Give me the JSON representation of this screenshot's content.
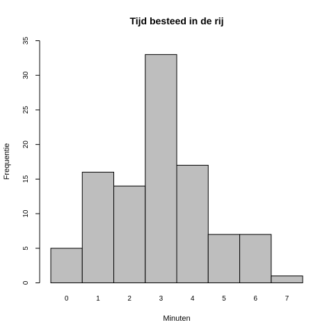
{
  "chart_data": {
    "type": "bar",
    "title": "Tijd besteed in de rij",
    "xlabel": "Minuten",
    "ylabel": "Frequentie",
    "categories": [
      "0",
      "1",
      "2",
      "3",
      "4",
      "5",
      "6",
      "7"
    ],
    "values": [
      5,
      16,
      14,
      33,
      17,
      7,
      7,
      1
    ],
    "yticks": [
      0,
      5,
      10,
      15,
      20,
      25,
      30,
      35
    ],
    "ylim": [
      0,
      35
    ],
    "grid": false,
    "bar_color": "#bebebe",
    "edge_color": "#000000"
  }
}
